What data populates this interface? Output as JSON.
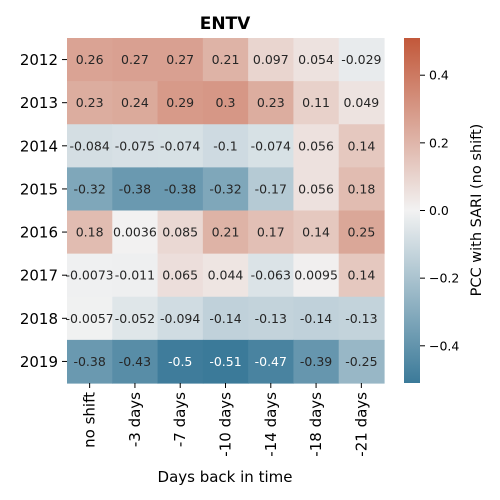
{
  "chart_data": {
    "type": "heatmap",
    "title": "ENTV",
    "xlabel": "Days back in time",
    "ylabel": "",
    "x_categories": [
      "no shift",
      "-3 days",
      "-7 days",
      "-10 days",
      "-14 days",
      "-18 days",
      "-21 days"
    ],
    "y_categories": [
      "2012",
      "2013",
      "2014",
      "2015",
      "2016",
      "2017",
      "2018",
      "2019"
    ],
    "values": [
      [
        "0.26",
        "0.27",
        "0.27",
        "0.21",
        "0.097",
        "0.054",
        "-0.029"
      ],
      [
        "0.23",
        "0.24",
        "0.29",
        "0.3",
        "0.23",
        "0.11",
        "0.049"
      ],
      [
        "-0.084",
        "-0.075",
        "-0.074",
        "-0.1",
        "-0.074",
        "0.056",
        "0.14"
      ],
      [
        "-0.32",
        "-0.38",
        "-0.38",
        "-0.32",
        "-0.17",
        "0.056",
        "0.18"
      ],
      [
        "0.18",
        "0.0036",
        "0.085",
        "0.21",
        "0.17",
        "0.14",
        "0.25"
      ],
      [
        "-0.0073",
        "-0.011",
        "0.065",
        "0.044",
        "-0.063",
        "0.0095",
        "0.14"
      ],
      [
        "-0.0057",
        "-0.052",
        "-0.094",
        "-0.14",
        "-0.13",
        "-0.14",
        "-0.13"
      ],
      [
        "-0.38",
        "-0.43",
        "-0.5",
        "-0.51",
        "-0.47",
        "-0.39",
        "-0.25"
      ]
    ],
    "colorbar": {
      "label": "PCC with SARI (no shift)",
      "range": [
        -0.51,
        0.51
      ],
      "ticks": [
        "0.4",
        "0.2",
        "0.0",
        "−0.2",
        "−0.4"
      ],
      "tick_values": [
        0.4,
        0.2,
        0.0,
        -0.2,
        -0.4
      ],
      "colors": {
        "negative": "#3b7a99",
        "center": "#f2f2f2",
        "positive": "#c2583a"
      }
    }
  }
}
